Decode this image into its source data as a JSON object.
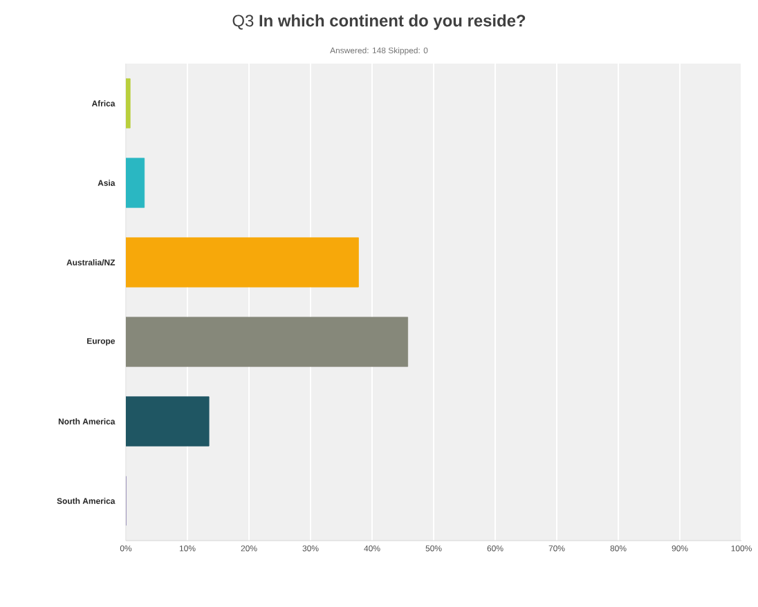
{
  "chart_data": {
    "type": "bar",
    "orientation": "horizontal",
    "title": "Q3 **In which continent do you reside?**",
    "subtitle": "Answered: 148    Skipped: 0",
    "categories": [
      "Africa",
      "Asia",
      "Australia/NZ",
      "Europe",
      "North America",
      "South America"
    ],
    "values": [
      0.7,
      3,
      37.8,
      45.8,
      13.5,
      0
    ],
    "colors": [
      "#b9cf3c",
      "#2ab7c2",
      "#f7a80a",
      "#86887a",
      "#1f5663",
      "#7a6da8"
    ],
    "xlim": [
      0,
      100
    ],
    "xticks": [
      {
        "value": 0,
        "label": "0%"
      },
      {
        "value": 10,
        "label": "10%"
      },
      {
        "value": 20,
        "label": "20%"
      },
      {
        "value": 30,
        "label": "30%"
      },
      {
        "value": 40,
        "label": "40%"
      },
      {
        "value": 50,
        "label": "50%"
      },
      {
        "value": 60,
        "label": "60%"
      },
      {
        "value": 70,
        "label": "70%"
      },
      {
        "value": 80,
        "label": "80%"
      },
      {
        "value": 90,
        "label": "90%"
      },
      {
        "value": 100,
        "label": "100%"
      }
    ],
    "grid": "x"
  }
}
